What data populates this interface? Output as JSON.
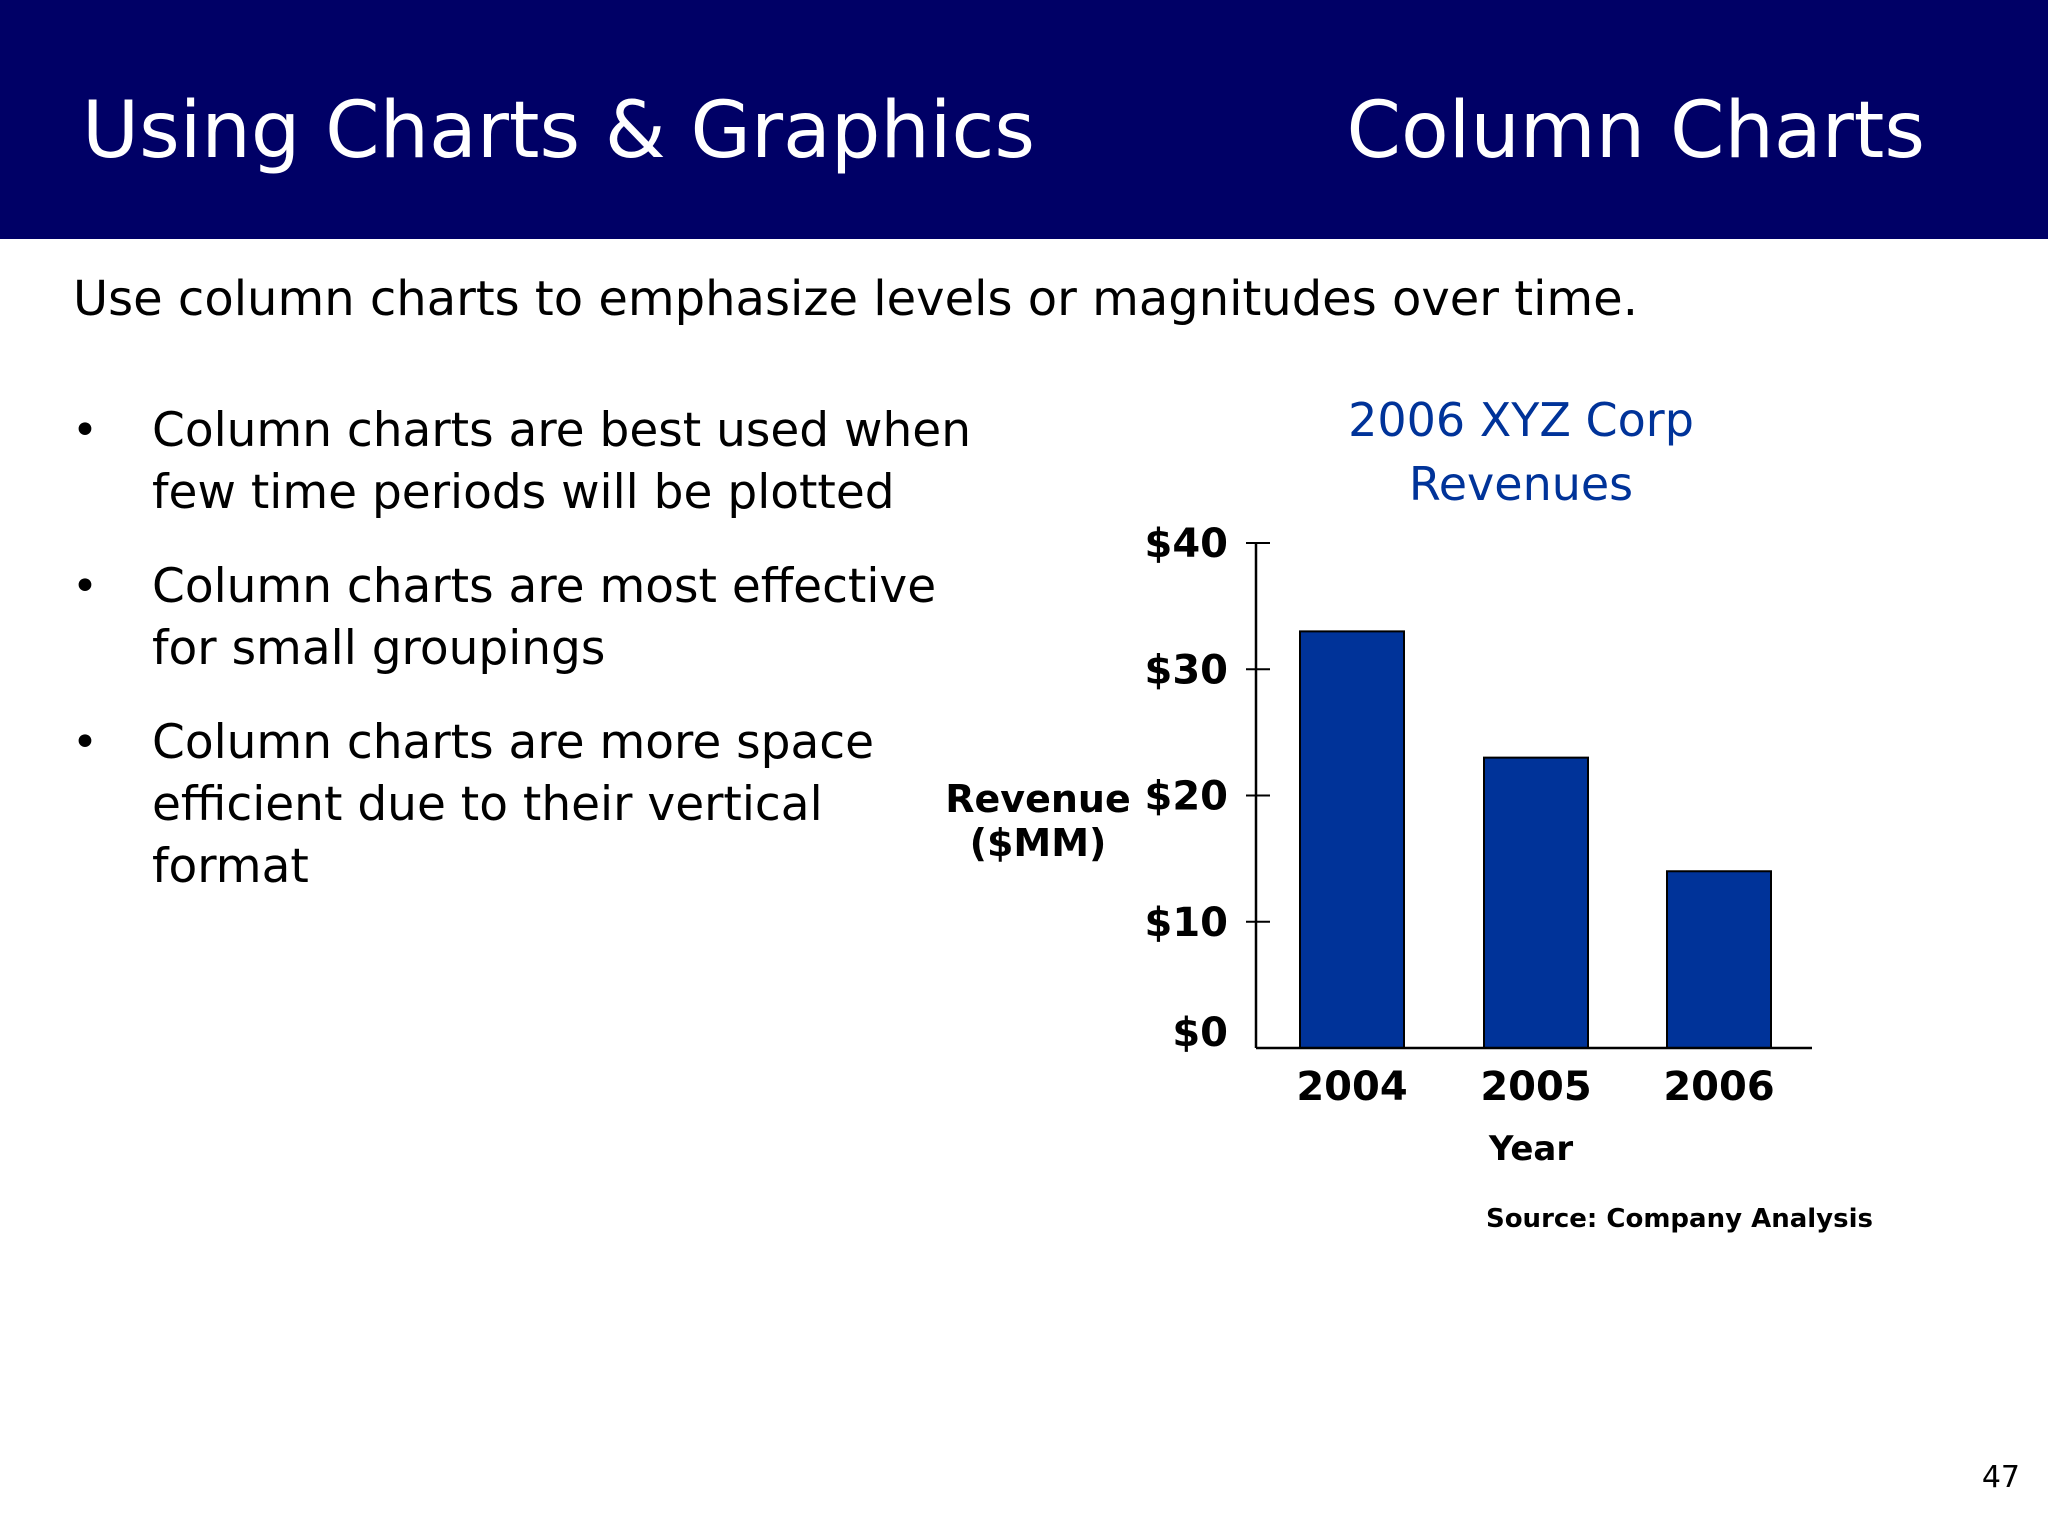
{
  "header": {
    "left_title": "Using Charts & Graphics",
    "right_title": "Column Charts",
    "background": "#000066"
  },
  "subtitle": "Use column charts to emphasize levels or magnitudes over time.",
  "bullets": [
    {
      "text": "Column charts are best used when few time periods will be plotted"
    },
    {
      "text": "Column charts are most effective for small groupings"
    },
    {
      "text": "Column charts are more space efficient due to their vertical format"
    }
  ],
  "chart_data": {
    "type": "bar",
    "title_lines": [
      "2006 XYZ Corp",
      "Revenues"
    ],
    "categories": [
      "2004",
      "2005",
      "2006"
    ],
    "values": [
      33,
      23,
      14
    ],
    "ylim": [
      0,
      40
    ],
    "yticks": [
      0,
      10,
      20,
      30,
      40
    ],
    "ytick_labels": [
      "$0",
      "$10",
      "$20",
      "$30",
      "$40"
    ],
    "ylabel_lines": [
      "Revenue",
      "($MM)"
    ],
    "xlabel": "Year",
    "source": "Source: Company Analysis",
    "bar_color": "#003399",
    "title_color": "#003399",
    "grid": false
  },
  "page_number": "47"
}
